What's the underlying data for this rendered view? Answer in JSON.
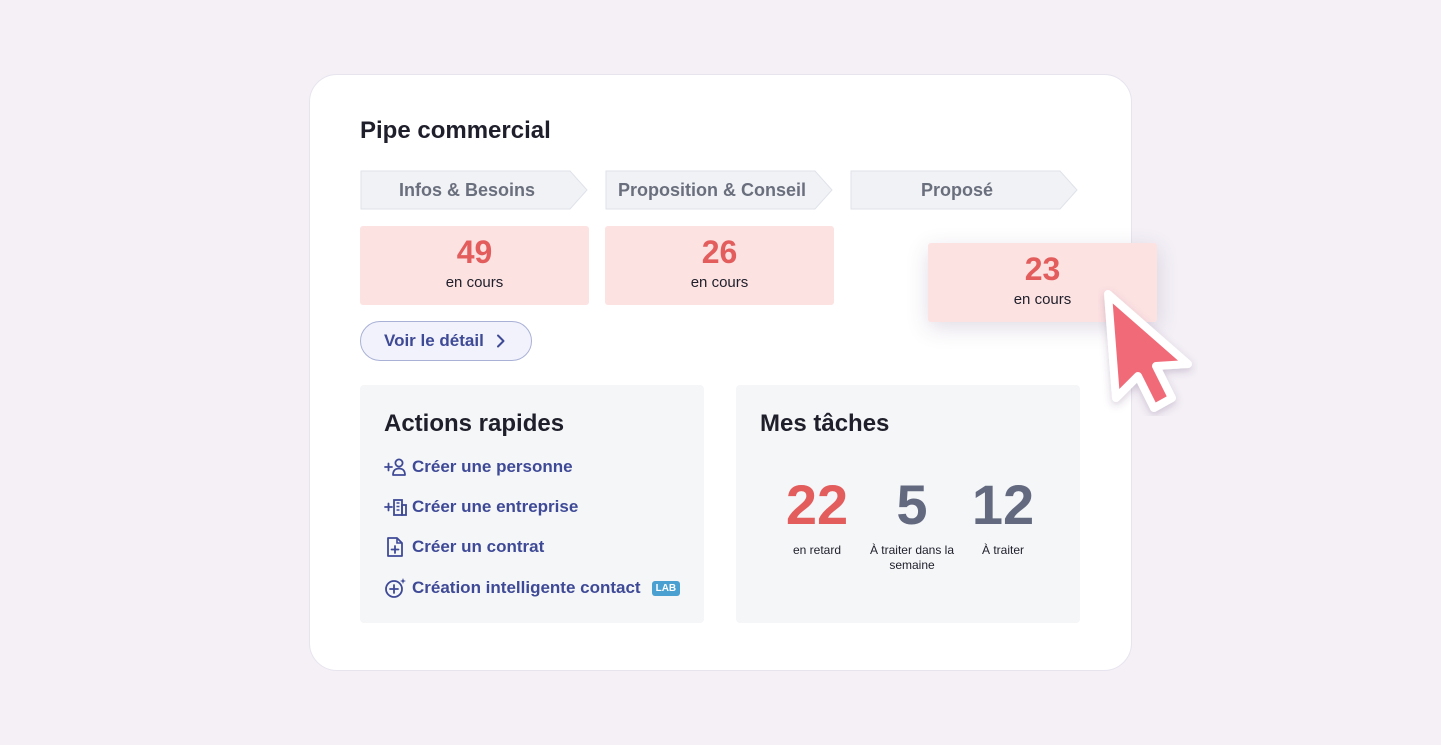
{
  "pipe": {
    "title": "Pipe commercial",
    "stages": [
      {
        "label": "Infos & Besoins",
        "count": "49",
        "count_label": "en cours"
      },
      {
        "label": "Proposition & Conseil",
        "count": "26",
        "count_label": "en cours"
      },
      {
        "label": "Proposé",
        "count": "23",
        "count_label": "en cours"
      }
    ],
    "detail_button": "Voir le détail"
  },
  "quick_actions": {
    "title": "Actions rapides",
    "items": [
      {
        "label": "Créer une personne",
        "icon": "add-person-icon"
      },
      {
        "label": "Créer une entreprise",
        "icon": "add-company-icon"
      },
      {
        "label": "Créer un contrat",
        "icon": "add-contract-icon"
      },
      {
        "label": "Création intelligente contact",
        "icon": "smart-add-icon",
        "badge": "LAB"
      }
    ]
  },
  "tasks": {
    "title": "Mes tâches",
    "stats": [
      {
        "value": "22",
        "label": "en retard",
        "color": "#e35d5d"
      },
      {
        "value": "5",
        "label": "À traiter dans la semaine",
        "color": "#636a80"
      },
      {
        "value": "12",
        "label": "À traiter",
        "color": "#636a80"
      }
    ]
  },
  "colors": {
    "accent": "#3f4a97",
    "alert": "#e35d5d",
    "count_bg": "#fde2e2",
    "cursor": "#f06a78"
  }
}
